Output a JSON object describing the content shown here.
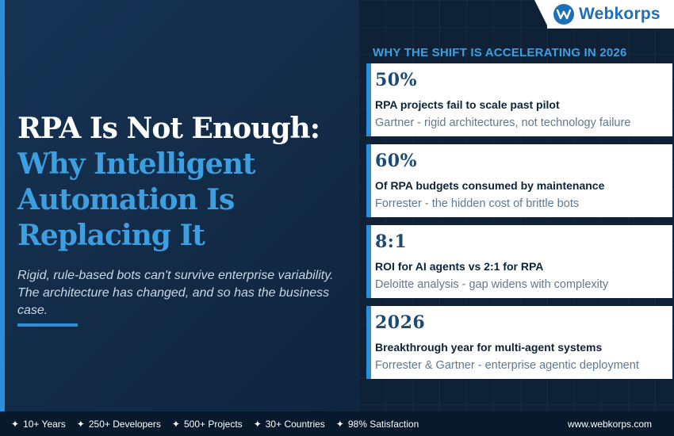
{
  "brand": {
    "name": "Webkorps",
    "website": "www.webkorps.com",
    "color": "#1f6fb8"
  },
  "hero": {
    "title_line1": "RPA Is Not Enough:",
    "title_line2": "Why Intelligent",
    "title_line3": "Automation Is",
    "title_line4": "Replacing It",
    "subtitle": "Rigid, rule-based bots can't survive enterprise variability. The architecture has changed, and so has the business case."
  },
  "section": {
    "heading": "WHY THE SHIFT IS ACCELERATING IN 2026"
  },
  "stats": [
    {
      "value": "50%",
      "label": "RPA projects fail to scale past pilot",
      "source": "Gartner - rigid architectures, not technology failure"
    },
    {
      "value": "60%",
      "label": "Of RPA budgets consumed by maintenance",
      "source": "Forrester - the hidden cost of brittle bots"
    },
    {
      "value": "8:1",
      "label": "ROI for AI agents vs 2:1 for RPA",
      "source": "Deloitte analysis - gap widens with complexity"
    },
    {
      "value": "2026",
      "label": "Breakthrough year for multi-agent systems",
      "source": "Forrester & Gartner - enterprise agentic deployment"
    }
  ],
  "footer": {
    "items": [
      "10+ Years",
      "250+ Developers",
      "500+ Projects",
      "30+ Countries",
      "98% Satisfaction"
    ],
    "star_icon": "✦"
  },
  "colors": {
    "accent": "#2a8fd8",
    "title_blue": "#3d9ee0",
    "background": "#10263f",
    "stat_value": "#1d4a72"
  }
}
